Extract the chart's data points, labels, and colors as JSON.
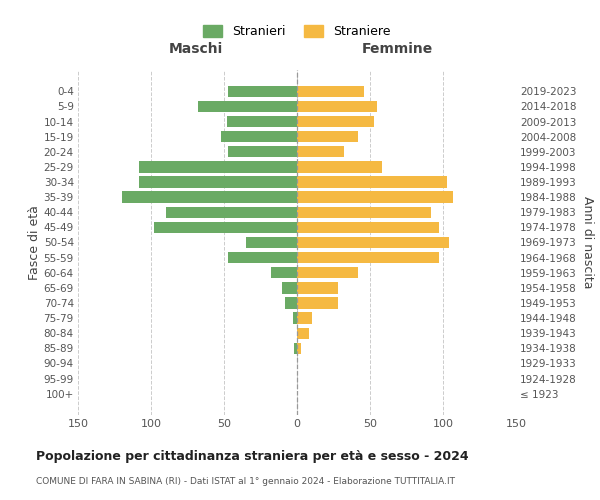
{
  "age_groups": [
    "0-4",
    "5-9",
    "10-14",
    "15-19",
    "20-24",
    "25-29",
    "30-34",
    "35-39",
    "40-44",
    "45-49",
    "50-54",
    "55-59",
    "60-64",
    "65-69",
    "70-74",
    "75-79",
    "80-84",
    "85-89",
    "90-94",
    "95-99",
    "100+"
  ],
  "birth_years": [
    "2019-2023",
    "2014-2018",
    "2009-2013",
    "2004-2008",
    "1999-2003",
    "1994-1998",
    "1989-1993",
    "1984-1988",
    "1979-1983",
    "1974-1978",
    "1969-1973",
    "1964-1968",
    "1959-1963",
    "1954-1958",
    "1949-1953",
    "1944-1948",
    "1939-1943",
    "1934-1938",
    "1929-1933",
    "1924-1928",
    "≤ 1923"
  ],
  "maschi": [
    47,
    68,
    48,
    52,
    47,
    108,
    108,
    120,
    90,
    98,
    35,
    47,
    18,
    10,
    8,
    3,
    0,
    2,
    0,
    0,
    0
  ],
  "femmine": [
    46,
    55,
    53,
    42,
    32,
    58,
    103,
    107,
    92,
    97,
    104,
    97,
    42,
    28,
    28,
    10,
    8,
    3,
    0,
    0,
    0
  ],
  "male_color": "#6aaa64",
  "female_color": "#f5b942",
  "grid_color": "#cccccc",
  "background_color": "#ffffff",
  "title": "Popolazione per cittadinanza straniera per età e sesso - 2024",
  "subtitle": "COMUNE DI FARA IN SABINA (RI) - Dati ISTAT al 1° gennaio 2024 - Elaborazione TUTTITALIA.IT",
  "xlabel_left": "Maschi",
  "xlabel_right": "Femmine",
  "ylabel_left": "Fasce di età",
  "ylabel_right": "Anni di nascita",
  "legend_male": "Stranieri",
  "legend_female": "Straniere",
  "xlim": 150,
  "dpi": 100,
  "figsize": [
    6.0,
    5.0
  ]
}
